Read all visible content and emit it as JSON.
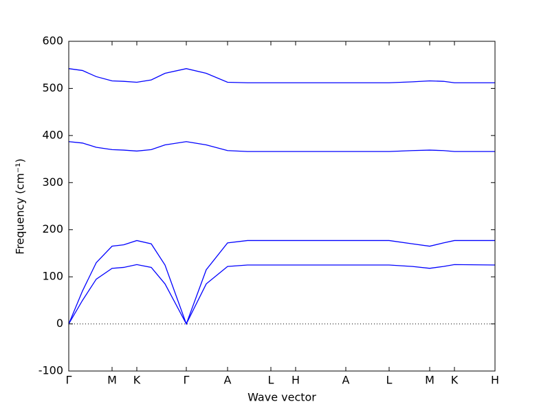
{
  "chart_data": {
    "type": "line",
    "xlabel": "Wave vector",
    "ylabel": "Frequency (cm⁻¹)",
    "x": [
      0,
      20,
      40,
      63,
      80,
      99,
      120,
      140,
      171,
      200,
      231,
      260,
      294,
      330,
      403,
      466,
      500,
      525,
      545,
      561,
      620
    ],
    "xlim": [
      0,
      620
    ],
    "xticks": [
      {
        "value": 0,
        "label": "Γ"
      },
      {
        "value": 63,
        "label": "M"
      },
      {
        "value": 99,
        "label": "K"
      },
      {
        "value": 171,
        "label": "Γ"
      },
      {
        "value": 231,
        "label": "A"
      },
      {
        "value": 294,
        "label": "L"
      },
      {
        "value": 330,
        "label": "H"
      },
      {
        "value": 403,
        "label": "A"
      },
      {
        "value": 466,
        "label": "L"
      },
      {
        "value": 525,
        "label": "M"
      },
      {
        "value": 561,
        "label": "K"
      },
      {
        "value": 620,
        "label": "H"
      }
    ],
    "ylim": [
      -100,
      600
    ],
    "yticks": [
      -100,
      0,
      100,
      200,
      300,
      400,
      500,
      600
    ],
    "zero_line": true,
    "grid": false,
    "series": [
      {
        "color": "#0000ff",
        "values": [
          542,
          538,
          525,
          516,
          515,
          513,
          518,
          532,
          542,
          532,
          513,
          512,
          512,
          512,
          512,
          512,
          514,
          516,
          515,
          512,
          512
        ]
      },
      {
        "color": "#0000ff",
        "values": [
          387,
          384,
          375,
          370,
          369,
          367,
          370,
          380,
          387,
          380,
          368,
          366,
          366,
          366,
          366,
          366,
          368,
          369,
          368,
          366,
          366
        ]
      },
      {
        "color": "#0000ff",
        "values": [
          0,
          70,
          130,
          165,
          168,
          177,
          170,
          125,
          0,
          115,
          172,
          177,
          177,
          177,
          177,
          177,
          170,
          165,
          172,
          177,
          177
        ]
      },
      {
        "color": "#0000ff",
        "values": [
          0,
          50,
          95,
          118,
          120,
          126,
          120,
          85,
          0,
          85,
          122,
          125,
          125,
          125,
          125,
          125,
          122,
          118,
          122,
          126,
          125
        ]
      }
    ]
  }
}
